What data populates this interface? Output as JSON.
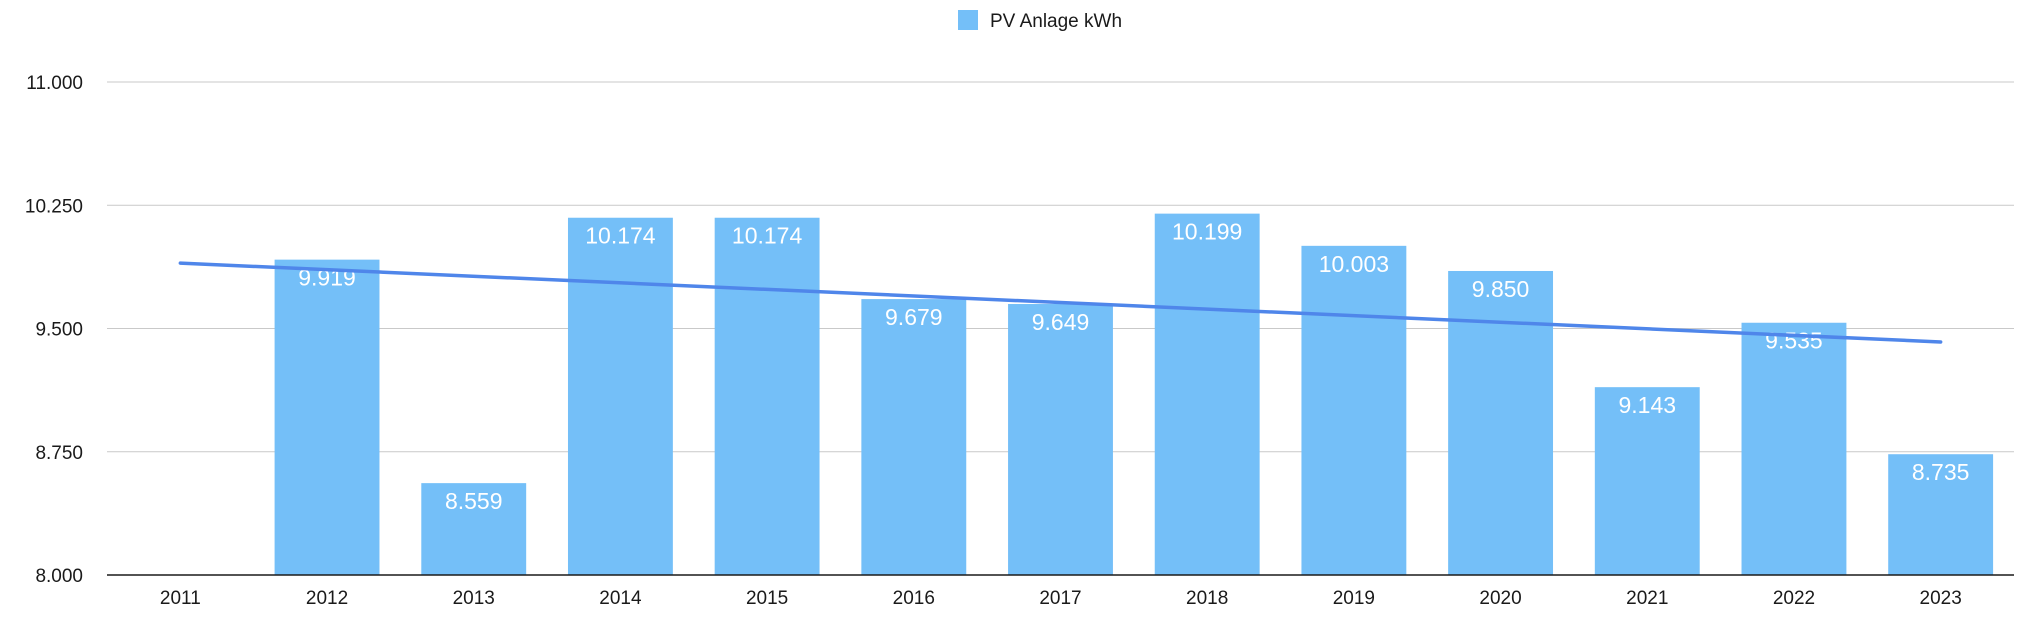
{
  "chart_data": {
    "type": "bar",
    "categories": [
      "2011",
      "2012",
      "2013",
      "2014",
      "2015",
      "2016",
      "2017",
      "2018",
      "2019",
      "2020",
      "2021",
      "2022",
      "2023"
    ],
    "series": [
      {
        "name": "PV Anlage kWh",
        "values": [
          null,
          9919,
          8559,
          10174,
          10174,
          9679,
          9649,
          10199,
          10003,
          9850,
          9143,
          9535,
          8735
        ],
        "value_labels": [
          "",
          "9.919",
          "8.559",
          "10.174",
          "10.174",
          "9.679",
          "9.649",
          "10.199",
          "10.003",
          "9.850",
          "9.143",
          "9.535",
          "8.735"
        ],
        "color": "#74bff8"
      }
    ],
    "trendline": {
      "type": "linear",
      "start": [
        2011,
        9898
      ],
      "end": [
        2023,
        9418
      ],
      "color": "#4f86ea"
    },
    "ylim": [
      8000,
      11000
    ],
    "yticks": [
      8000,
      8750,
      9500,
      10250,
      11000
    ],
    "ytick_labels": [
      "8.000",
      "8.750",
      "9.500",
      "10.250",
      "11.000"
    ],
    "grid": true,
    "legend": {
      "position": "top-center",
      "entries": [
        "PV Anlage kWh"
      ]
    },
    "title": "",
    "xlabel": "",
    "ylabel": ""
  }
}
